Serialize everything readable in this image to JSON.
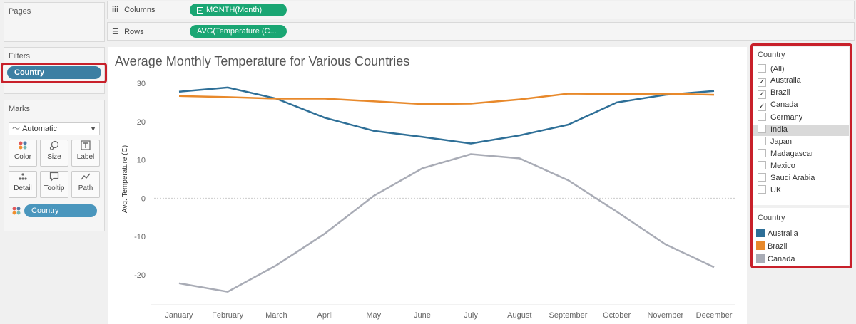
{
  "pages": {
    "title": "Pages"
  },
  "filters": {
    "title": "Filters",
    "pill": "Country"
  },
  "marks": {
    "title": "Marks",
    "type": "Automatic",
    "buttons": [
      {
        "label": "Color",
        "icon": "color-dots-icon"
      },
      {
        "label": "Size",
        "icon": "size-icon"
      },
      {
        "label": "Label",
        "icon": "label-icon"
      },
      {
        "label": "Detail",
        "icon": "detail-icon"
      },
      {
        "label": "Tooltip",
        "icon": "tooltip-icon"
      },
      {
        "label": "Path",
        "icon": "path-icon"
      }
    ],
    "color_pill": "Country"
  },
  "shelves": {
    "columns": {
      "label": "Columns",
      "pill": "MONTH(Month)"
    },
    "rows": {
      "label": "Rows",
      "pill": "AVG(Temperature (C..."
    }
  },
  "filter_card": {
    "title": "Country",
    "items": [
      {
        "label": "(All)",
        "checked": false
      },
      {
        "label": "Australia",
        "checked": true
      },
      {
        "label": "Brazil",
        "checked": true
      },
      {
        "label": "Canada",
        "checked": true
      },
      {
        "label": "Germany",
        "checked": false
      },
      {
        "label": "India",
        "checked": false,
        "highlighted": true
      },
      {
        "label": "Japan",
        "checked": false
      },
      {
        "label": "Madagascar",
        "checked": false
      },
      {
        "label": "Mexico",
        "checked": false
      },
      {
        "label": "Saudi Arabia",
        "checked": false
      },
      {
        "label": "UK",
        "checked": false
      }
    ]
  },
  "color_legend": {
    "title": "Country",
    "items": [
      {
        "label": "Australia",
        "color": "#2e6f97"
      },
      {
        "label": "Brazil",
        "color": "#e8892b"
      },
      {
        "label": "Canada",
        "color": "#a9acb6"
      }
    ]
  },
  "chart_data": {
    "type": "line",
    "title": "Average Monthly Temperature for Various Countries",
    "ylabel": "Avg. Temperature (C)",
    "xlabel": "",
    "ylim": [
      -25,
      30
    ],
    "yticks": [
      "30",
      "20",
      "10",
      "0",
      "-10",
      "-20"
    ],
    "categories": [
      "January",
      "February",
      "March",
      "April",
      "May",
      "June",
      "July",
      "August",
      "September",
      "October",
      "November",
      "December"
    ],
    "series": [
      {
        "name": "Australia",
        "color": "#2e6f97",
        "values": [
          27.8,
          28.9,
          26.0,
          21.0,
          17.6,
          16.0,
          14.3,
          16.4,
          19.2,
          25.0,
          27.0,
          28.0
        ]
      },
      {
        "name": "Brazil",
        "color": "#e8892b",
        "values": [
          26.7,
          26.4,
          26.0,
          26.0,
          25.3,
          24.6,
          24.7,
          25.8,
          27.3,
          27.2,
          27.3,
          27.0
        ]
      },
      {
        "name": "Canada",
        "color": "#a9acb6",
        "values": [
          -22.2,
          -24.4,
          -17.5,
          -9.2,
          0.6,
          7.8,
          11.5,
          10.4,
          4.7,
          -3.5,
          -12.0,
          -18.0
        ]
      }
    ],
    "legend": "right",
    "grid": false
  }
}
